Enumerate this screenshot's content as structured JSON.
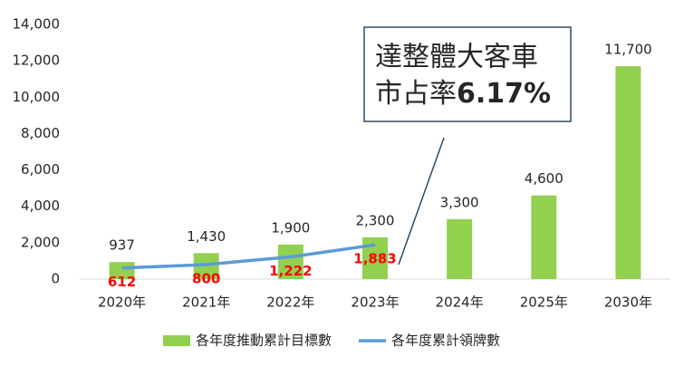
{
  "chart_data": {
    "type": "bar",
    "categories": [
      "2020年",
      "2021年",
      "2022年",
      "2023年",
      "2024年",
      "2025年",
      "2030年"
    ],
    "series": [
      {
        "name": "各年度推動累計目標數",
        "type": "bar",
        "color": "#92d050",
        "values": [
          937,
          1430,
          1900,
          2300,
          3300,
          4600,
          11700
        ],
        "value_labels": [
          "937",
          "1,430",
          "1,900",
          "2,300",
          "3,300",
          "4,600",
          "11,700"
        ]
      },
      {
        "name": "各年度累計領牌數",
        "type": "line",
        "color": "#5b9bd5",
        "values": [
          612,
          800,
          1222,
          1883,
          null,
          null,
          null
        ],
        "value_labels": [
          "612",
          "800",
          "1,222",
          "1,883",
          null,
          null,
          null
        ]
      }
    ],
    "ylim": [
      0,
      14000
    ],
    "yticks": [
      0,
      {
        "value": 2000,
        "label": "2,000"
      },
      {
        "value": 4000,
        "label": "4,000"
      },
      {
        "value": 6000,
        "label": "6,000"
      },
      {
        "value": 8000,
        "label": "8,000"
      },
      {
        "value": 10000,
        "label": "10,000"
      },
      {
        "value": 12000,
        "label": "12,000"
      },
      {
        "value": 14000,
        "label": "14,000"
      }
    ],
    "grid": false,
    "legend": "bottom",
    "annotation": {
      "lines": [
        "達整體大客車",
        "市占率"
      ],
      "highlight": "6.17%"
    }
  }
}
